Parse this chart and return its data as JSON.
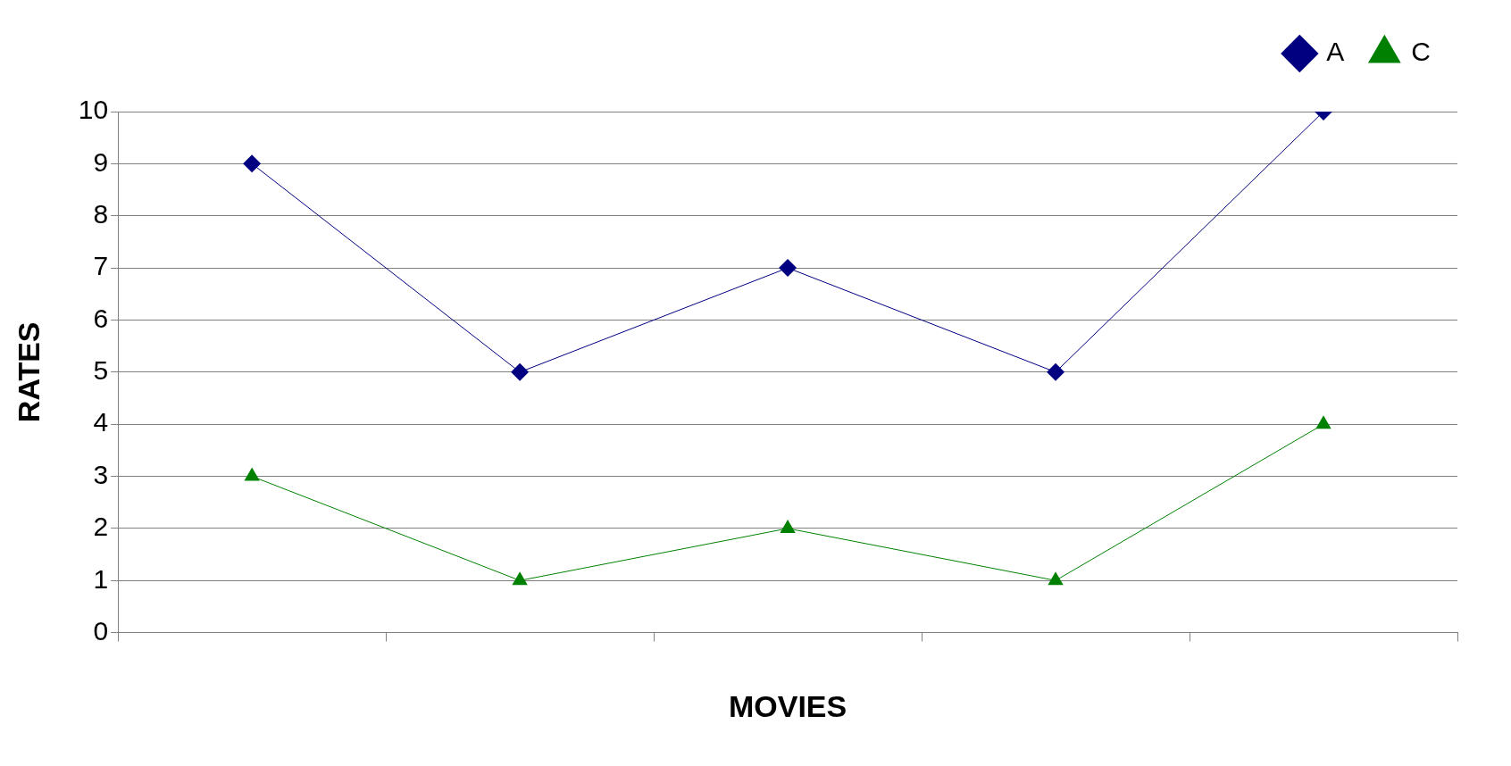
{
  "chart_data": {
    "type": "line",
    "xlabel": "MOVIES",
    "ylabel": "RATES",
    "categories": [
      null,
      null,
      null,
      null,
      null
    ],
    "series": [
      {
        "name": "A",
        "color": "#000080",
        "marker": "diamond",
        "values": [
          9,
          5,
          7,
          5,
          10
        ]
      },
      {
        "name": "C",
        "color": "#008000",
        "marker": "triangle",
        "values": [
          3,
          1,
          2,
          1,
          4
        ]
      }
    ],
    "ylim": [
      0,
      10
    ],
    "yticks": [
      0,
      1,
      2,
      3,
      4,
      5,
      6,
      7,
      8,
      9,
      10
    ],
    "grid": "y",
    "legend": "top right",
    "line_style": "solid"
  }
}
